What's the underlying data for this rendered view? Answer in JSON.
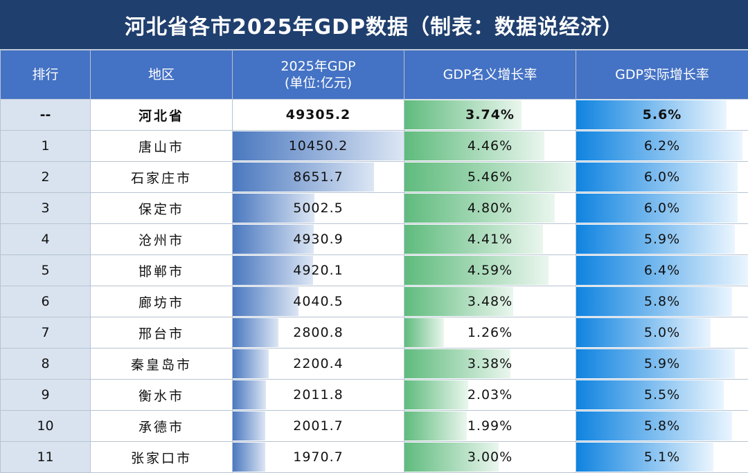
{
  "title": "河北省各市2025年GDP数据（制表：数据说经济）",
  "headers": {
    "rank": "排行",
    "region": "地区",
    "gdp_line1": "2025年GDP",
    "gdp_line2": "(单位:亿元)",
    "nominal": "GDP名义增长率",
    "real": "GDP实际增长率"
  },
  "colors": {
    "title_bg": "#1f3f6e",
    "header_bg": "#4472c4",
    "gdp_bar": "#4a78bf",
    "nominal_bar": "#5fbb7d",
    "real_bar": "#0f83e0"
  },
  "scale": {
    "gdp_max": 10450.2,
    "nominal_max": 5.46,
    "real_max": 6.4
  },
  "rows": [
    {
      "rank": "--",
      "region": "河北省",
      "gdp": "49305.2",
      "gdp_value": null,
      "nominal": "3.74%",
      "nominal_value": 3.74,
      "real": "5.6%",
      "real_value": 5.6
    },
    {
      "rank": "1",
      "region": "唐山市",
      "gdp": "10450.2",
      "gdp_value": 10450.2,
      "nominal": "4.46%",
      "nominal_value": 4.46,
      "real": "6.2%",
      "real_value": 6.2
    },
    {
      "rank": "2",
      "region": "石家庄市",
      "gdp": "8651.7",
      "gdp_value": 8651.7,
      "nominal": "5.46%",
      "nominal_value": 5.46,
      "real": "6.0%",
      "real_value": 6.0
    },
    {
      "rank": "3",
      "region": "保定市",
      "gdp": "5002.5",
      "gdp_value": 5002.5,
      "nominal": "4.80%",
      "nominal_value": 4.8,
      "real": "6.0%",
      "real_value": 6.0
    },
    {
      "rank": "4",
      "region": "沧州市",
      "gdp": "4930.9",
      "gdp_value": 4930.9,
      "nominal": "4.41%",
      "nominal_value": 4.41,
      "real": "5.9%",
      "real_value": 5.9
    },
    {
      "rank": "5",
      "region": "邯郸市",
      "gdp": "4920.1",
      "gdp_value": 4920.1,
      "nominal": "4.59%",
      "nominal_value": 4.59,
      "real": "6.4%",
      "real_value": 6.4
    },
    {
      "rank": "6",
      "region": "廊坊市",
      "gdp": "4040.5",
      "gdp_value": 4040.5,
      "nominal": "3.48%",
      "nominal_value": 3.48,
      "real": "5.8%",
      "real_value": 5.8
    },
    {
      "rank": "7",
      "region": "邢台市",
      "gdp": "2800.8",
      "gdp_value": 2800.8,
      "nominal": "1.26%",
      "nominal_value": 1.26,
      "real": "5.0%",
      "real_value": 5.0
    },
    {
      "rank": "8",
      "region": "秦皇岛市",
      "gdp": "2200.4",
      "gdp_value": 2200.4,
      "nominal": "3.38%",
      "nominal_value": 3.38,
      "real": "5.9%",
      "real_value": 5.9
    },
    {
      "rank": "9",
      "region": "衡水市",
      "gdp": "2011.8",
      "gdp_value": 2011.8,
      "nominal": "2.03%",
      "nominal_value": 2.03,
      "real": "5.5%",
      "real_value": 5.5
    },
    {
      "rank": "10",
      "region": "承德市",
      "gdp": "2001.7",
      "gdp_value": 2001.7,
      "nominal": "1.99%",
      "nominal_value": 1.99,
      "real": "5.8%",
      "real_value": 5.8
    },
    {
      "rank": "11",
      "region": "张家口市",
      "gdp": "1970.7",
      "gdp_value": 1970.7,
      "nominal": "3.00%",
      "nominal_value": 3.0,
      "real": "5.1%",
      "real_value": 5.1
    }
  ]
}
